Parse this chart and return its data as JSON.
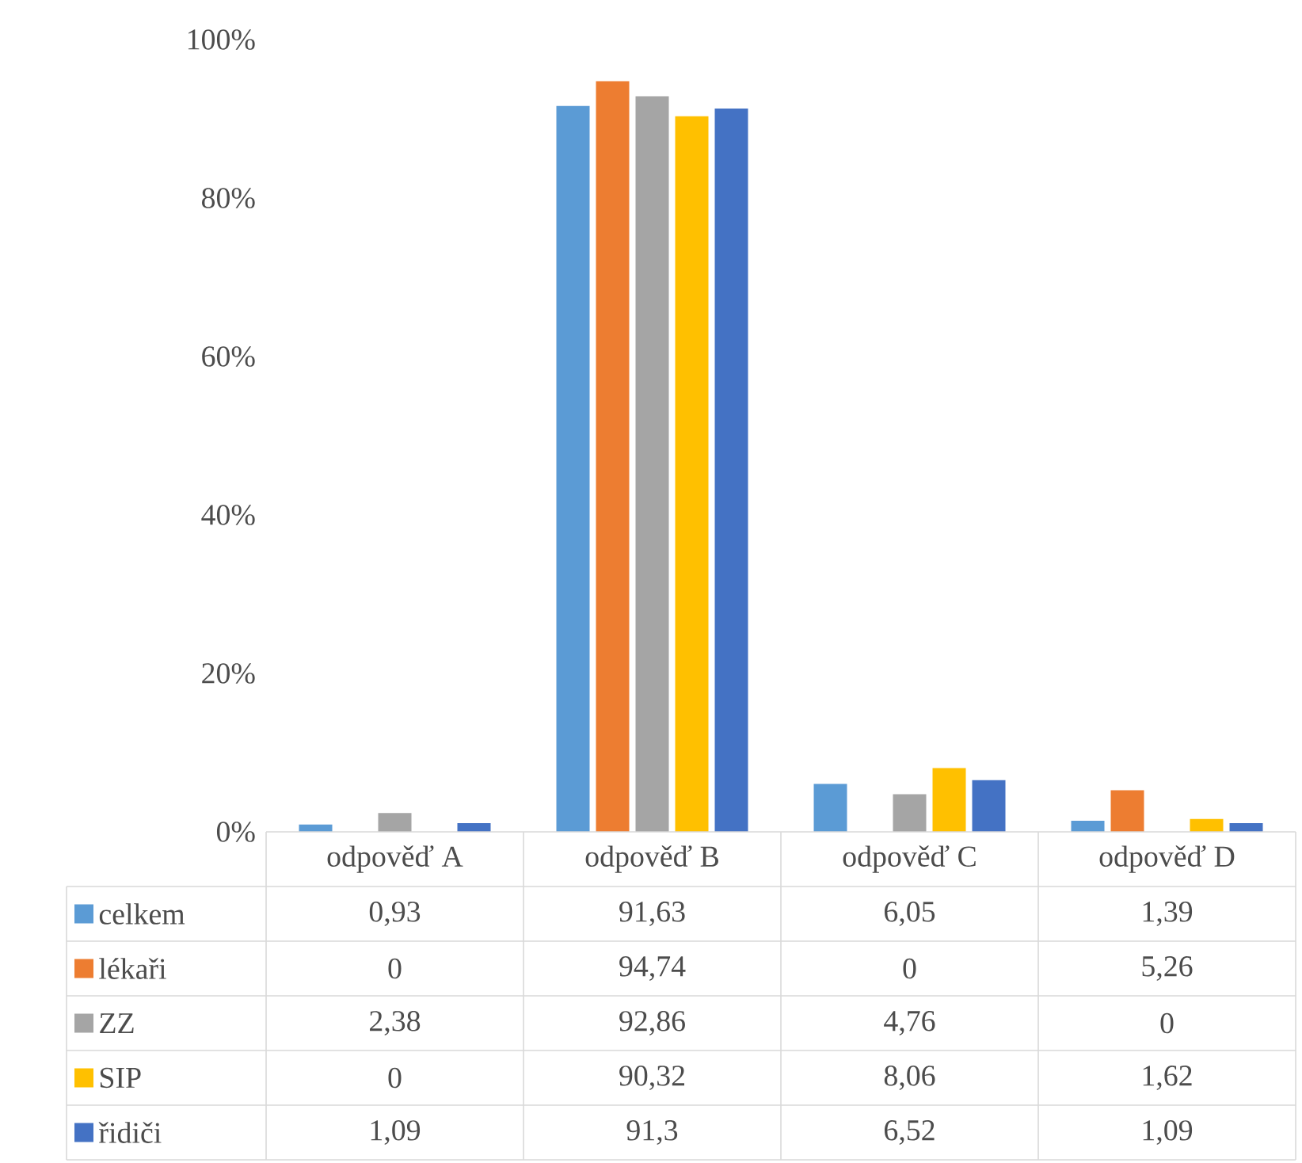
{
  "chart_data": {
    "type": "bar",
    "categories": [
      "odpověď A",
      "odpověď B",
      "odpověď C",
      "odpověď D"
    ],
    "series": [
      {
        "name": "celkem",
        "color": "#5b9bd5",
        "values": [
          0.93,
          91.63,
          6.05,
          1.39
        ],
        "value_labels": [
          "0,93",
          "91,63",
          "6,05",
          "1,39"
        ]
      },
      {
        "name": "lékaři",
        "color": "#ed7d31",
        "values": [
          0,
          94.74,
          0,
          5.26
        ],
        "value_labels": [
          "0",
          "94,74",
          "0",
          "5,26"
        ]
      },
      {
        "name": "ZZ",
        "color": "#a5a5a5",
        "values": [
          2.38,
          92.86,
          4.76,
          0
        ],
        "value_labels": [
          "2,38",
          "92,86",
          "4,76",
          "0"
        ]
      },
      {
        "name": "SIP",
        "color": "#ffc000",
        "values": [
          0,
          90.32,
          8.06,
          1.62
        ],
        "value_labels": [
          "0",
          "90,32",
          "8,06",
          "1,62"
        ]
      },
      {
        "name": "řidiči",
        "color": "#4472c4",
        "values": [
          1.09,
          91.3,
          6.52,
          1.09
        ],
        "value_labels": [
          "1,09",
          "91,3",
          "6,52",
          "1,09"
        ]
      }
    ],
    "ylim": [
      0,
      100
    ],
    "yticks": [
      {
        "value": 0,
        "label": "0%"
      },
      {
        "value": 20,
        "label": "20%"
      },
      {
        "value": 40,
        "label": "40%"
      },
      {
        "value": 60,
        "label": "60%"
      },
      {
        "value": 80,
        "label": "80%"
      },
      {
        "value": 100,
        "label": "100%"
      }
    ],
    "legend": "bottom"
  }
}
